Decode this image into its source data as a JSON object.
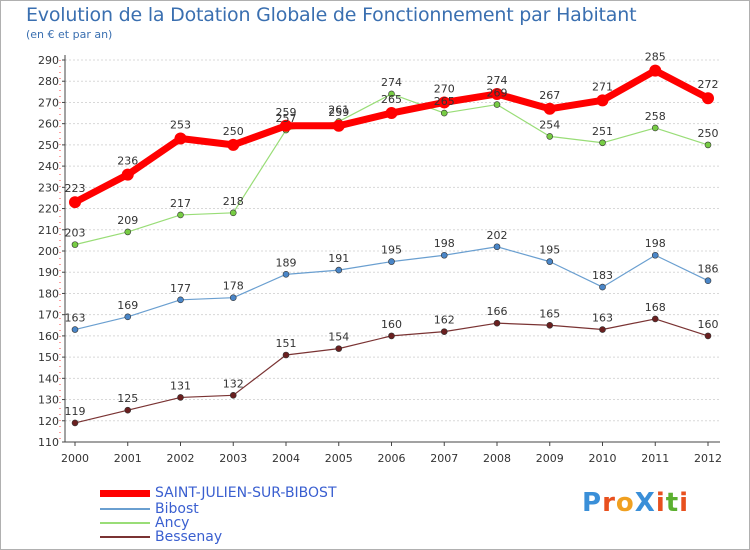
{
  "title": "Evolution de la Dotation Globale de Fonctionnement par Habitant",
  "subtitle": "(en € et par an)",
  "logo": {
    "text": "ProXiti",
    "colors": [
      "#3a8fd8",
      "#e8501e",
      "#f0a020",
      "#3a8fd8",
      "#e8501e",
      "#5cb030",
      "#e8501e"
    ]
  },
  "chart_data": {
    "type": "line",
    "title": "Evolution de la Dotation Globale de Fonctionnement par Habitant",
    "subtitle": "(en € et par an)",
    "xlabel": "",
    "ylabel": "",
    "x": [
      "2000",
      "2001",
      "2002",
      "2003",
      "2004",
      "2005",
      "2006",
      "2007",
      "2008",
      "2009",
      "2010",
      "2011",
      "2012"
    ],
    "ylim": [
      110,
      290
    ],
    "yticks": [
      "110",
      "120",
      "130",
      "140",
      "150",
      "160",
      "170",
      "180",
      "190",
      "200",
      "210",
      "220",
      "230",
      "240",
      "250",
      "260",
      "270",
      "280",
      "290"
    ],
    "grid": "horizontal",
    "legend_position": "bottom-left",
    "series": [
      {
        "name": "SAINT-JULIEN-SUR-BIBOST",
        "color": "#ff0000",
        "marker": "#ff0000",
        "width": 7,
        "r": 6,
        "values": [
          223,
          236,
          253,
          250,
          259,
          259,
          265,
          270,
          274,
          267,
          271,
          285,
          272
        ]
      },
      {
        "name": "Bibost",
        "color": "#6a9fd0",
        "marker": "#4a86c8",
        "width": 1.2,
        "r": 3,
        "values": [
          163,
          169,
          177,
          178,
          189,
          191,
          195,
          198,
          202,
          195,
          183,
          198,
          186
        ]
      },
      {
        "name": "Ancy",
        "color": "#99dd77",
        "marker": "#77cc44",
        "width": 1.2,
        "r": 3,
        "values": [
          203,
          209,
          217,
          218,
          257,
          261,
          274,
          265,
          269,
          254,
          251,
          258,
          250
        ]
      },
      {
        "name": "Bessenay",
        "color": "#7a3333",
        "marker": "#6a1f1f",
        "width": 1.2,
        "r": 3,
        "values": [
          119,
          125,
          131,
          132,
          151,
          154,
          160,
          162,
          166,
          165,
          163,
          168,
          160
        ]
      }
    ]
  }
}
